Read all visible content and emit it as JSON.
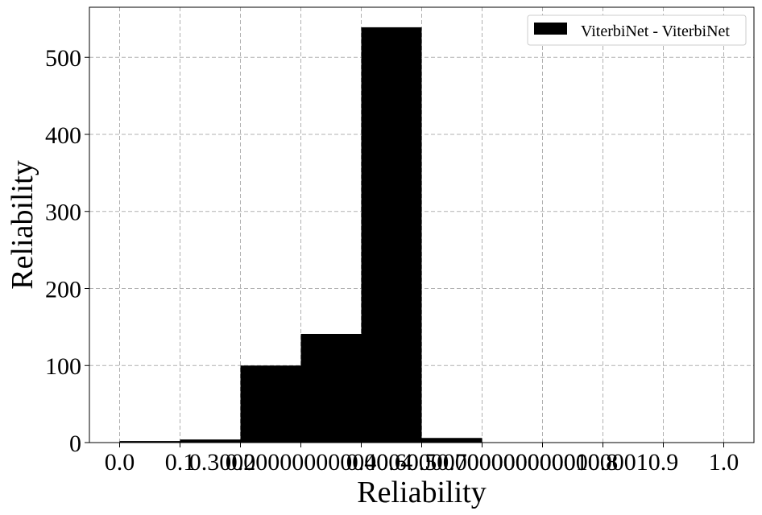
{
  "chart_data": {
    "type": "bar",
    "xlabel": "Reliability",
    "ylabel": "Reliability",
    "xlim": [
      -0.05,
      1.05
    ],
    "ylim": [
      0,
      565
    ],
    "grid": true,
    "legend_position": "top-right",
    "x_tick_values": [
      0.0,
      0.1,
      0.2,
      0.3,
      0.4,
      0.5,
      0.6,
      0.7,
      0.8,
      0.9,
      1.0
    ],
    "x_tick_labels": [
      "0.0",
      "0.1",
      "0.2",
      "0.30000000000000004",
      "0.4",
      "0.5",
      "0.6000000000000001",
      "0.7000000000000001",
      "0.8",
      "0.9",
      "1.0"
    ],
    "y_ticks": [
      0,
      100,
      200,
      300,
      400,
      500
    ],
    "series": [
      {
        "name": "ViterbiNet - ViterbiNet",
        "color": "#000000",
        "bins": [
          {
            "x0": 0.0,
            "x1": 0.1,
            "value": 2
          },
          {
            "x0": 0.1,
            "x1": 0.2,
            "value": 4
          },
          {
            "x0": 0.2,
            "x1": 0.3,
            "value": 100
          },
          {
            "x0": 0.3,
            "x1": 0.4,
            "value": 141
          },
          {
            "x0": 0.4,
            "x1": 0.5,
            "value": 539
          },
          {
            "x0": 0.5,
            "x1": 0.6,
            "value": 6
          },
          {
            "x0": 0.6,
            "x1": 0.7,
            "value": 0
          },
          {
            "x0": 0.7,
            "x1": 0.8,
            "value": 0
          },
          {
            "x0": 0.8,
            "x1": 0.9,
            "value": 0
          },
          {
            "x0": 0.9,
            "x1": 1.0,
            "value": 0
          }
        ]
      }
    ]
  }
}
